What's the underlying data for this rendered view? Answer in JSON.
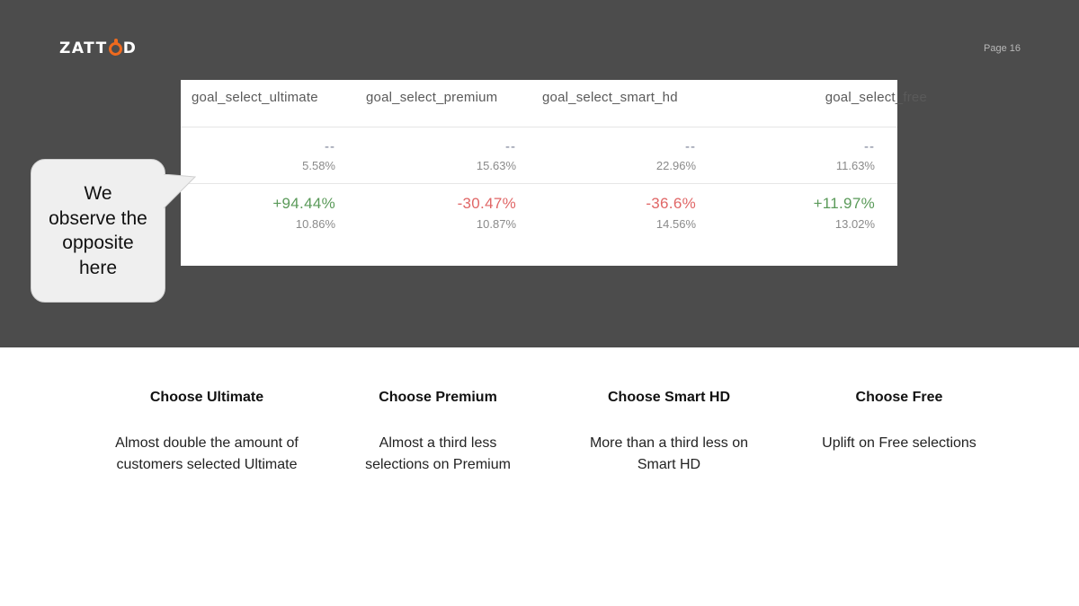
{
  "brand": {
    "logo_pre": "ZATT",
    "logo_post": "D",
    "accent": "#ee6a1e"
  },
  "page_label": "Page 16",
  "callout": {
    "text": "We observe the opposite here"
  },
  "table": {
    "columns": [
      {
        "header": "goal_select_ultimate",
        "control_delta": "--",
        "control_rate": "5.58%",
        "uplift": "+94.44%",
        "variant_rate": "10.86%",
        "uplift_color": "#5a9a59"
      },
      {
        "header": "goal_select_premium",
        "control_delta": "--",
        "control_rate": "15.63%",
        "uplift": "-30.47%",
        "variant_rate": "10.87%",
        "uplift_color": "#e06666"
      },
      {
        "header": "goal_select_smart_hd",
        "control_delta": "--",
        "control_rate": "22.96%",
        "uplift": "-36.6%",
        "variant_rate": "14.56%",
        "uplift_color": "#e06666"
      },
      {
        "header": "goal_select_free",
        "control_delta": "--",
        "control_rate": "11.63%",
        "uplift": "+11.97%",
        "variant_rate": "13.02%",
        "uplift_color": "#5a9a59"
      }
    ]
  },
  "summaries": [
    {
      "title": "Choose Ultimate",
      "text": "Almost double the amount of customers selected Ultimate"
    },
    {
      "title": "Choose Premium",
      "text": "Almost a third less selections on Premium"
    },
    {
      "title": "Choose Smart HD",
      "text": "More than a third less on Smart HD"
    },
    {
      "title": "Choose Free",
      "text": "Uplift on Free selections"
    }
  ]
}
